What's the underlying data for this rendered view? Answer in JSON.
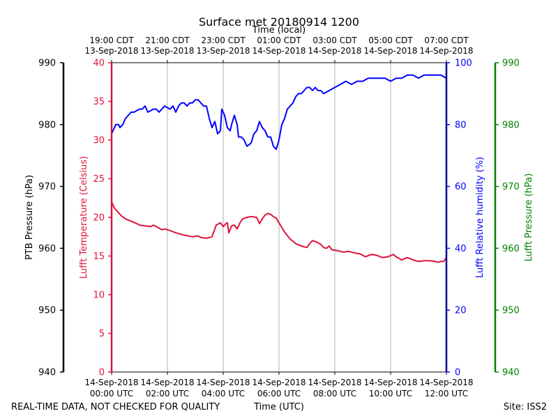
{
  "chart_data": {
    "type": "line",
    "title": "Surface met 20180914 1200",
    "top_axis_label": "Time (local)",
    "xlabel": "Time (UTC)",
    "x_unit": "hours since 14-Sep-2018 00:00 UTC",
    "xlim": [
      0,
      12
    ],
    "bottom_ticks": [
      {
        "x": 0,
        "line1": "14-Sep-2018",
        "line2": "00:00 UTC"
      },
      {
        "x": 2,
        "line1": "14-Sep-2018",
        "line2": "02:00 UTC"
      },
      {
        "x": 4,
        "line1": "14-Sep-2018",
        "line2": "04:00 UTC"
      },
      {
        "x": 6,
        "line1": "14-Sep-2018",
        "line2": "06:00 UTC"
      },
      {
        "x": 8,
        "line1": "14-Sep-2018",
        "line2": "08:00 UTC"
      },
      {
        "x": 10,
        "line1": "14-Sep-2018",
        "line2": "10:00 UTC"
      },
      {
        "x": 12,
        "line1": "14-Sep-2018",
        "line2": "12:00 UTC"
      }
    ],
    "top_ticks": [
      {
        "x": 0,
        "line1": "19:00 CDT",
        "line2": "13-Sep-2018"
      },
      {
        "x": 2,
        "line1": "21:00 CDT",
        "line2": "13-Sep-2018"
      },
      {
        "x": 4,
        "line1": "23:00 CDT",
        "line2": "13-Sep-2018"
      },
      {
        "x": 6,
        "line1": "01:00 CDT",
        "line2": "14-Sep-2018"
      },
      {
        "x": 8,
        "line1": "03:00 CDT",
        "line2": "14-Sep-2018"
      },
      {
        "x": 10,
        "line1": "05:00 CDT",
        "line2": "14-Sep-2018"
      },
      {
        "x": 12,
        "line1": "07:00 CDT",
        "line2": "14-Sep-2018"
      }
    ],
    "axes": {
      "ptb_pressure": {
        "label": "PTB Pressure (hPa)",
        "ylim": [
          940,
          990
        ],
        "ticks": [
          940,
          950,
          960,
          970,
          980,
          990
        ],
        "color": "#000000"
      },
      "temperature": {
        "label": "Lufft Temperature (Celsius)",
        "ylim": [
          0,
          40
        ],
        "ticks": [
          0,
          5,
          10,
          15,
          20,
          25,
          30,
          35,
          40
        ],
        "color": "#dc143c"
      },
      "humidity": {
        "label": "Lufft Relative humidity (%)",
        "ylim": [
          0,
          100
        ],
        "ticks": [
          0,
          20,
          40,
          60,
          80,
          100
        ],
        "color": "#0000ff"
      },
      "lufft_pressure": {
        "label": "Lufft Pressure (hPa)",
        "ylim": [
          940,
          990
        ],
        "ticks": [
          940,
          950,
          960,
          970,
          980,
          990
        ],
        "color": "#008000"
      }
    },
    "grid": "vertical",
    "series": [
      {
        "name": "Lufft Temperature",
        "axis": "temperature",
        "color": "#dc143c",
        "x": [
          0,
          0.1,
          0.2,
          0.35,
          0.5,
          0.7,
          0.9,
          1.0,
          1.2,
          1.4,
          1.5,
          1.7,
          1.8,
          1.9,
          2.1,
          2.3,
          2.4,
          2.6,
          2.9,
          3.1,
          3.2,
          3.4,
          3.6,
          3.75,
          3.9,
          4.0,
          4.1,
          4.15,
          4.2,
          4.3,
          4.4,
          4.5,
          4.6,
          4.7,
          4.85,
          5.0,
          5.2,
          5.3,
          5.4,
          5.5,
          5.6,
          5.7,
          5.8,
          5.9,
          6.0,
          6.2,
          6.4,
          6.6,
          6.8,
          7.0,
          7.1,
          7.2,
          7.35,
          7.5,
          7.6,
          7.7,
          7.8,
          7.9,
          8.1,
          8.3,
          8.5,
          8.7,
          8.9,
          9.1,
          9.3,
          9.5,
          9.7,
          9.9,
          10.1,
          10.2,
          10.4,
          10.6,
          10.8,
          11.0,
          11.2,
          11.4,
          11.6,
          11.7,
          11.8,
          11.9,
          12.0
        ],
        "values": [
          22.0,
          21.2,
          20.8,
          20.2,
          19.8,
          19.5,
          19.2,
          19.0,
          18.9,
          18.8,
          19.0,
          18.6,
          18.4,
          18.5,
          18.3,
          18.0,
          17.9,
          17.7,
          17.5,
          17.6,
          17.4,
          17.3,
          17.5,
          19.0,
          19.3,
          18.8,
          19.2,
          19.3,
          18.0,
          18.9,
          19.0,
          18.5,
          19.3,
          19.8,
          20.0,
          20.1,
          20.0,
          19.2,
          19.8,
          20.3,
          20.5,
          20.4,
          20.1,
          19.9,
          19.3,
          18.1,
          17.2,
          16.6,
          16.3,
          16.1,
          16.6,
          17.0,
          16.8,
          16.5,
          16.1,
          16.0,
          16.3,
          15.8,
          15.7,
          15.5,
          15.6,
          15.4,
          15.3,
          14.9,
          15.2,
          15.1,
          14.8,
          14.9,
          15.2,
          14.9,
          14.5,
          14.8,
          14.5,
          14.3,
          14.4,
          14.4,
          14.3,
          14.2,
          14.3,
          14.3,
          14.8
        ]
      },
      {
        "name": "Lufft Relative humidity",
        "axis": "humidity",
        "color": "#0000ff",
        "x": [
          0,
          0.05,
          0.15,
          0.25,
          0.3,
          0.4,
          0.5,
          0.6,
          0.7,
          0.8,
          1.0,
          1.1,
          1.2,
          1.3,
          1.5,
          1.6,
          1.7,
          1.8,
          1.9,
          2.1,
          2.2,
          2.3,
          2.4,
          2.5,
          2.6,
          2.7,
          2.8,
          2.9,
          3.0,
          3.1,
          3.2,
          3.3,
          3.4,
          3.5,
          3.6,
          3.7,
          3.8,
          3.9,
          3.95,
          4.05,
          4.15,
          4.25,
          4.3,
          4.4,
          4.5,
          4.55,
          4.65,
          4.75,
          4.85,
          5.0,
          5.1,
          5.2,
          5.3,
          5.4,
          5.5,
          5.6,
          5.7,
          5.8,
          5.9,
          6.0,
          6.1,
          6.2,
          6.3,
          6.4,
          6.5,
          6.6,
          6.7,
          6.8,
          6.9,
          7.0,
          7.1,
          7.2,
          7.3,
          7.4,
          7.5,
          7.6,
          7.8,
          8.0,
          8.2,
          8.4,
          8.6,
          8.8,
          9.0,
          9.2,
          9.4,
          9.6,
          9.8,
          10.0,
          10.2,
          10.4,
          10.6,
          10.8,
          11.0,
          11.2,
          11.4,
          11.6,
          11.8,
          12.0
        ],
        "values": [
          77,
          78,
          80,
          80,
          79,
          80,
          82,
          83,
          84,
          84,
          85,
          85,
          86,
          84,
          85,
          85,
          84,
          85,
          86,
          85,
          86,
          84,
          86,
          87,
          87,
          86,
          87,
          87,
          88,
          88,
          87,
          86,
          86,
          82,
          79,
          81,
          77,
          78,
          85,
          83,
          79,
          78,
          80,
          83,
          80,
          76,
          76,
          75,
          73,
          74,
          77,
          78,
          81,
          79,
          78,
          76,
          76,
          73,
          72,
          75,
          80,
          82,
          85,
          86,
          87,
          89,
          90,
          90,
          91,
          92,
          92,
          91,
          92,
          91,
          91,
          90,
          91,
          92,
          93,
          94,
          93,
          94,
          94,
          95,
          95,
          95,
          95,
          94,
          95,
          95,
          96,
          96,
          95,
          96,
          96,
          96,
          96,
          95
        ]
      },
      {
        "name": "PTB Pressure",
        "axis": "ptb_pressure",
        "color": "#000000",
        "x": [],
        "values": []
      },
      {
        "name": "Lufft Pressure",
        "axis": "lufft_pressure",
        "color": "#008000",
        "x": [],
        "values": []
      }
    ]
  },
  "footer": {
    "left": "REAL-TIME DATA, NOT CHECKED FOR QUALITY",
    "center": "Time (UTC)",
    "right": "Site: ISS2"
  }
}
